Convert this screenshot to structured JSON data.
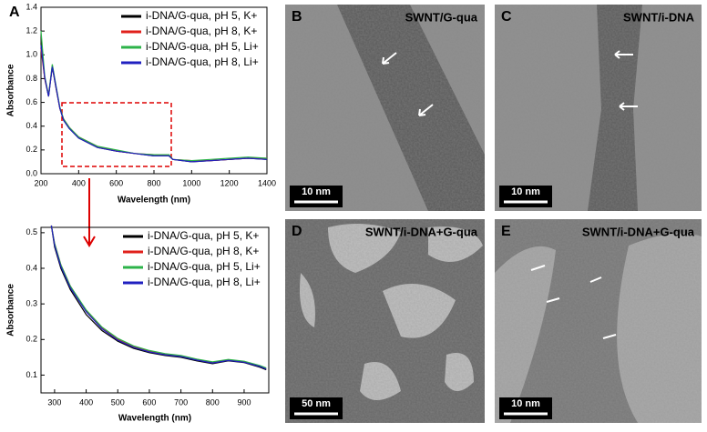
{
  "chart_data": [
    {
      "type": "line",
      "panel": "A",
      "x_label": "Wavelength (nm)",
      "y_label": "Absorbance",
      "x": [
        200,
        220,
        240,
        260,
        280,
        300,
        320,
        350,
        400,
        500,
        600,
        700,
        800,
        880,
        900,
        1000,
        1100,
        1200,
        1300,
        1400
      ],
      "series": [
        {
          "name": "i-DNA/G-qua, pH 5, K+",
          "color": "#000000",
          "values": [
            1.1,
            0.8,
            0.65,
            0.9,
            0.72,
            0.55,
            0.45,
            0.38,
            0.3,
            0.22,
            0.19,
            0.17,
            0.15,
            0.15,
            0.12,
            0.1,
            0.11,
            0.12,
            0.13,
            0.12
          ]
        },
        {
          "name": "i-DNA/G-qua, pH 8, K+",
          "color": "#e0201b",
          "values": [
            1.05,
            0.8,
            0.66,
            0.91,
            0.73,
            0.55,
            0.46,
            0.39,
            0.31,
            0.23,
            0.19,
            0.17,
            0.16,
            0.15,
            0.12,
            0.11,
            0.11,
            0.12,
            0.13,
            0.13
          ]
        },
        {
          "name": "i-DNA/G-qua, pH 5, Li+",
          "color": "#2db34a",
          "values": [
            1.2,
            0.82,
            0.66,
            0.92,
            0.74,
            0.56,
            0.46,
            0.39,
            0.31,
            0.23,
            0.2,
            0.17,
            0.16,
            0.16,
            0.12,
            0.11,
            0.12,
            0.13,
            0.14,
            0.13
          ]
        },
        {
          "name": "i-DNA/G-qua, pH 8, Li+",
          "color": "#2020c0",
          "values": [
            1.08,
            0.81,
            0.65,
            0.9,
            0.73,
            0.55,
            0.45,
            0.38,
            0.3,
            0.22,
            0.19,
            0.17,
            0.15,
            0.15,
            0.12,
            0.1,
            0.11,
            0.12,
            0.13,
            0.12
          ]
        }
      ],
      "xlim": [
        200,
        1400
      ],
      "xticks": [
        200,
        400,
        600,
        800,
        1000,
        1200,
        1400
      ],
      "ylim": [
        0,
        1.4
      ],
      "yticks": [
        {
          "value": 0,
          "label": "0.0"
        },
        0.2,
        0.4,
        0.6,
        0.8,
        {
          "value": 1,
          "label": "1.0"
        },
        1.2,
        1.4
      ],
      "legend": "upper right"
    },
    {
      "type": "line",
      "x_label": "Wavelength (nm)",
      "y_label": "Absorbance",
      "x": [
        290,
        300,
        320,
        350,
        400,
        450,
        500,
        550,
        600,
        650,
        700,
        750,
        800,
        850,
        900,
        950,
        970
      ],
      "series": [
        {
          "name": "i-DNA/G-qua, pH 5, K+",
          "color": "#000000",
          "values": [
            0.52,
            0.46,
            0.4,
            0.34,
            0.27,
            0.225,
            0.195,
            0.175,
            0.163,
            0.155,
            0.15,
            0.14,
            0.132,
            0.14,
            0.135,
            0.122,
            0.115
          ]
        },
        {
          "name": "i-DNA/G-qua, pH 8, K+",
          "color": "#e0201b",
          "values": [
            0.52,
            0.47,
            0.41,
            0.35,
            0.28,
            0.232,
            0.2,
            0.18,
            0.167,
            0.158,
            0.153,
            0.143,
            0.135,
            0.142,
            0.137,
            0.125,
            0.118
          ]
        },
        {
          "name": "i-DNA/G-qua, pH 5, Li+",
          "color": "#2db34a",
          "values": [
            0.52,
            0.47,
            0.41,
            0.35,
            0.283,
            0.235,
            0.203,
            0.182,
            0.169,
            0.16,
            0.155,
            0.145,
            0.137,
            0.144,
            0.139,
            0.127,
            0.12
          ]
        },
        {
          "name": "i-DNA/G-qua, pH 8, Li+",
          "color": "#2020c0",
          "values": [
            0.52,
            0.465,
            0.405,
            0.345,
            0.278,
            0.23,
            0.198,
            0.178,
            0.165,
            0.157,
            0.152,
            0.142,
            0.134,
            0.141,
            0.136,
            0.124,
            0.117
          ]
        }
      ],
      "xlim": [
        257,
        978
      ],
      "xticks": [
        300,
        400,
        500,
        600,
        700,
        800,
        900
      ],
      "ylim": [
        0.05,
        0.515
      ],
      "yticks": [
        0.1,
        0.2,
        0.3,
        0.4,
        0.5
      ],
      "legend": "upper right"
    }
  ],
  "panels": [
    {
      "label": "B",
      "caption": "SWNT/G-qua",
      "scale_bar": "10 nm"
    },
    {
      "label": "C",
      "caption": "SWNT/i-DNA",
      "scale_bar": "10 nm"
    },
    {
      "label": "D",
      "caption": "SWNT/i-DNA+G-qua",
      "scale_bar": "50 nm"
    },
    {
      "label": "E",
      "caption": "SWNT/i-DNA+G-qua",
      "scale_bar": "10 nm"
    }
  ]
}
